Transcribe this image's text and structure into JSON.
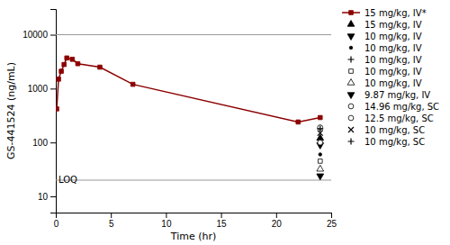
{
  "chart_data": {
    "type": "line",
    "x_label": "Time (hr)",
    "y_label": "GS-441524 (ng/mL)",
    "log": "y",
    "xlim": [
      0,
      25
    ],
    "ylim": [
      5,
      30000
    ],
    "xticks": [
      0,
      5,
      10,
      15,
      20,
      25
    ],
    "yticks": [
      10,
      100,
      1000,
      10000
    ],
    "legend": "right",
    "hlines": [
      {
        "y": 10000
      },
      {
        "y": 20,
        "label": "LOQ"
      }
    ],
    "series": [
      {
        "name": "15 mg/kg, IV*",
        "color": "#8B0000",
        "marker": "square",
        "line_style": "solid",
        "x": [
          0.083,
          0.25,
          0.5,
          0.75,
          1.0,
          1.5,
          2.0,
          4.0,
          7.0,
          22.0,
          24.0
        ],
        "values": [
          420,
          1500,
          2100,
          2800,
          3700,
          3500,
          2900,
          2500,
          1200,
          240,
          290
        ]
      },
      {
        "name": "15 mg/kg, IV",
        "color": "black",
        "marker": "triangle-up",
        "line_style": "none",
        "x": [],
        "values": []
      },
      {
        "name": "10 mg/kg, IV",
        "color": "black",
        "marker": "triangle-down",
        "line_style": "none",
        "x": [],
        "values": []
      },
      {
        "name": "10 mg/kg, IV",
        "color": "black",
        "marker": "point",
        "line_style": "none",
        "x": [],
        "values": []
      },
      {
        "name": "10 mg/kg, IV",
        "color": "black",
        "marker": "plus",
        "line_style": "none",
        "x": [],
        "values": []
      },
      {
        "name": "10 mg/kg, IV",
        "color": "black",
        "marker": "square-open",
        "line_style": "none",
        "x": [],
        "values": []
      },
      {
        "name": "10 mg/kg, IV",
        "color": "black",
        "marker": "triangle-up-open",
        "line_style": "none",
        "x": [],
        "values": []
      },
      {
        "name": "9.87 mg/kg, IV",
        "color": "black",
        "marker": "triangle-down",
        "line_style": "none",
        "x": [],
        "values": []
      },
      {
        "name": "14.96 mg/kg, SC",
        "color": "black",
        "marker": "circle-open",
        "line_style": "none",
        "x": [],
        "values": []
      },
      {
        "name": "12.5 mg/kg, SC",
        "color": "black",
        "marker": "circle-open",
        "line_style": "none",
        "x": [],
        "values": []
      },
      {
        "name": "10 mg/kg, SC",
        "color": "black",
        "marker": "x",
        "line_style": "none",
        "x": [],
        "values": []
      },
      {
        "name": "10 mg/kg, SC",
        "color": "black",
        "marker": "plus",
        "line_style": "none",
        "x": [],
        "values": []
      },
      {
        "type": "scatter",
        "color": "black",
        "marker": "circle-open",
        "x": [
          24.0
        ],
        "values": [
          190
        ]
      },
      {
        "type": "scatter",
        "color": "black",
        "marker": "triangle-up",
        "x": [
          24.0
        ],
        "values": [
          120
        ]
      },
      {
        "type": "scatter",
        "color": "black",
        "marker": "triangle-down",
        "x": [
          24.0
        ],
        "values": [
          90
        ]
      },
      {
        "type": "scatter",
        "color": "black",
        "marker": "point",
        "x": [
          24.0
        ],
        "values": [
          60
        ]
      },
      {
        "type": "scatter",
        "color": "black",
        "marker": "square-open",
        "x": [
          24.0
        ],
        "values": [
          45
        ]
      },
      {
        "type": "scatter",
        "color": "black",
        "marker": "triangle-up-open",
        "x": [
          24.0
        ],
        "values": [
          32
        ]
      },
      {
        "type": "scatter",
        "color": "black",
        "marker": "plus",
        "x": [
          24.0
        ],
        "values": [
          180
        ]
      },
      {
        "type": "scatter",
        "color": "black",
        "marker": "triangle-down",
        "x": [
          24.0
        ],
        "values": [
          24
        ]
      },
      {
        "type": "scatter",
        "color": "black",
        "marker": "x",
        "x": [
          24.0
        ],
        "values": [
          150
        ]
      },
      {
        "type": "scatter",
        "color": "black",
        "marker": "circle-open",
        "x": [
          24.0
        ],
        "values": [
          100
        ]
      }
    ]
  }
}
